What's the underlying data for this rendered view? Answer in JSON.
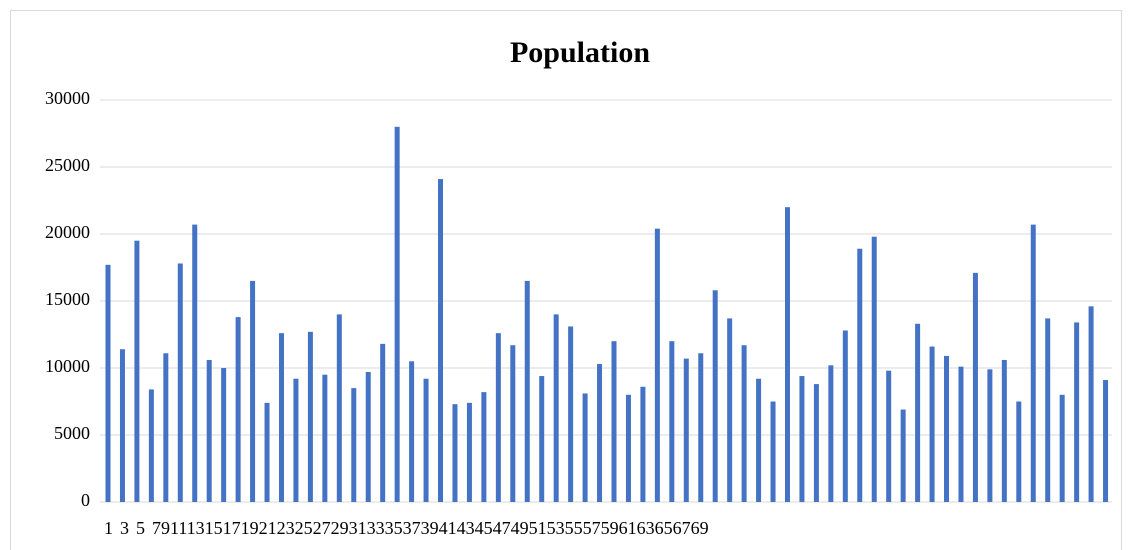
{
  "chart_data": {
    "type": "bar",
    "title": "Population",
    "categories": [
      "1",
      null,
      "3",
      null,
      "5",
      null,
      "7",
      null,
      "9",
      null,
      "11",
      null,
      "13",
      null,
      "15",
      null,
      "17",
      null,
      "19",
      null,
      "21",
      null,
      "23",
      null,
      "25",
      null,
      "27",
      null,
      "29",
      null,
      "31",
      null,
      "33",
      null,
      "35",
      null,
      "37",
      null,
      "39",
      null,
      "41",
      null,
      "43",
      null,
      "45",
      null,
      "47",
      null,
      "49",
      null,
      "51",
      null,
      "53",
      null,
      "55",
      null,
      "57",
      null,
      "59",
      null,
      "61",
      null,
      "63",
      null,
      "65",
      null,
      "67",
      null,
      "69",
      null
    ],
    "values": [
      17700,
      11400,
      19500,
      8400,
      11100,
      17800,
      20700,
      10600,
      10000,
      13800,
      16500,
      7400,
      12600,
      9200,
      12700,
      9500,
      14000,
      8500,
      9700,
      11800,
      28000,
      10500,
      9200,
      24100,
      7300,
      7400,
      8200,
      12600,
      11700,
      16500,
      9400,
      14000,
      13100,
      8100,
      10300,
      12000,
      8000,
      8600,
      20400,
      12000,
      10700,
      11100,
      15800,
      13700,
      11700,
      9200,
      7500,
      22000,
      9400,
      8800,
      10200,
      12800,
      18900,
      19800,
      9800,
      6900,
      13300,
      11600,
      10900,
      10100,
      17100,
      9900,
      10600,
      7500,
      20700,
      13700,
      8000,
      13400,
      14600,
      9100
    ],
    "color": "#4472c4",
    "ylim": [
      0,
      30000
    ],
    "yticks": [
      0,
      5000,
      10000,
      15000,
      20000,
      25000,
      30000
    ],
    "grid": true
  }
}
